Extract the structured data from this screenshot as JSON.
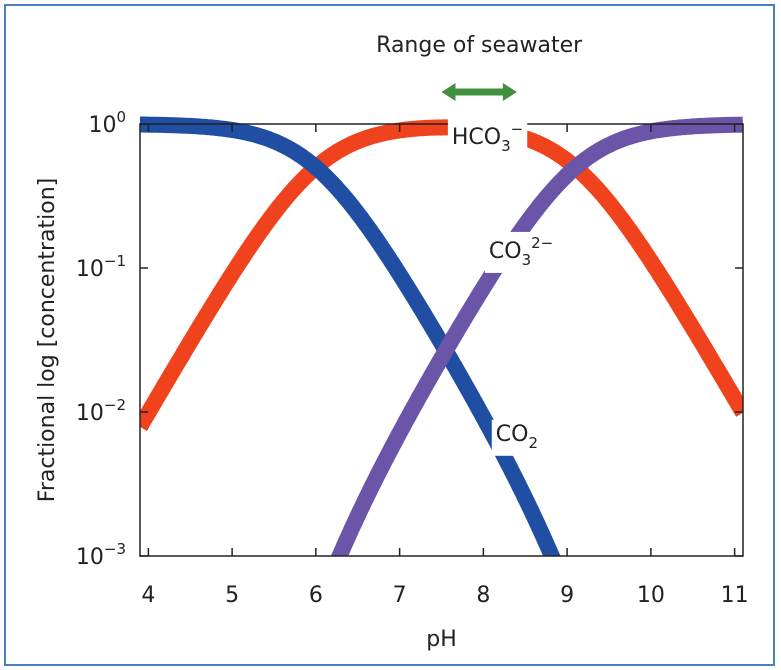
{
  "chart_data": {
    "type": "line",
    "title": "",
    "xlabel": "pH",
    "ylabel": "Fractional log [concentration]",
    "xlim": [
      3.9,
      11.1
    ],
    "ylim_log10": [
      -3,
      0
    ],
    "y_scale": "log",
    "grid": false,
    "x_ticks": [
      "4",
      "5",
      "6",
      "7",
      "8",
      "9",
      "10",
      "11"
    ],
    "y_ticks": [
      {
        "base": "10",
        "exp": "0"
      },
      {
        "base": "10",
        "exp": "−1"
      },
      {
        "base": "10",
        "exp": "−2"
      },
      {
        "base": "10",
        "exp": "−3"
      }
    ],
    "pK1": 6.0,
    "pK2": 9.1,
    "series": [
      {
        "id": "co2",
        "label_main": "CO",
        "label_sub": "2",
        "label_sup": "",
        "color": "#1f4ea3",
        "label_ph": 8.4
      },
      {
        "id": "hco3",
        "label_main": "HCO",
        "label_sub": "3",
        "label_sup": "−",
        "color": "#f0421c",
        "label_ph": 8.05
      },
      {
        "id": "co3",
        "label_main": "CO",
        "label_sub": "3",
        "label_sup": "2−",
        "color": "#6a55a8",
        "label_ph": 8.45
      }
    ],
    "annotation": {
      "text": "Range of seawater",
      "range_ph": [
        7.5,
        8.4
      ],
      "color": "#3f9140"
    }
  }
}
